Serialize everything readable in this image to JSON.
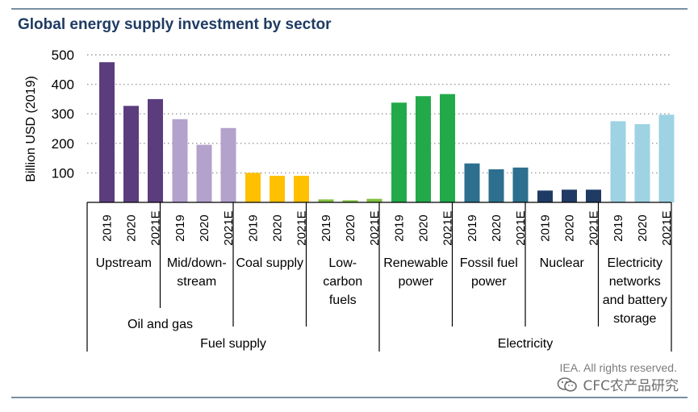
{
  "title": "Global energy supply investment by sector",
  "credit": "IEA. All rights reserved.",
  "watermark_text": "CFC农产品研究",
  "watermark_logo": "wechat-icon",
  "chart_data": {
    "type": "bar",
    "title": "Global energy supply investment by sector",
    "ylabel": "Billion USD (2019)",
    "xlabel": "",
    "ylim": [
      0,
      500
    ],
    "yticks": [
      100,
      200,
      300,
      400,
      500
    ],
    "grid": "horizontal-dotted",
    "groups": [
      {
        "label": "Upstream",
        "color": "#5b3d7e",
        "categories": [
          "2019",
          "2020",
          "2021E"
        ],
        "values": [
          475,
          327,
          350
        ]
      },
      {
        "label": "Mid/down-\nstream",
        "color": "#b3a2cc",
        "categories": [
          "2019",
          "2020",
          "2021E"
        ],
        "values": [
          282,
          195,
          252
        ]
      },
      {
        "label": "Coal supply",
        "color": "#ffc000",
        "categories": [
          "2019",
          "2020",
          "2021E"
        ],
        "values": [
          100,
          90,
          90
        ]
      },
      {
        "label": "Low-\ncarbon\nfuels",
        "color": "#7fbf3f",
        "categories": [
          "2019",
          "2020",
          "2021E"
        ],
        "values": [
          10,
          7,
          12
        ]
      },
      {
        "label": "Renewable\npower",
        "color": "#22aa4a",
        "categories": [
          "2019",
          "2020",
          "2021E"
        ],
        "values": [
          338,
          360,
          367
        ]
      },
      {
        "label": "Fossil fuel\npower",
        "color": "#2d6f8e",
        "categories": [
          "2019",
          "2020",
          "2021E"
        ],
        "values": [
          132,
          112,
          118
        ]
      },
      {
        "label": "Nuclear",
        "color": "#1f3b63",
        "categories": [
          "2019",
          "2020",
          "2021E"
        ],
        "values": [
          40,
          43,
          43
        ]
      },
      {
        "label": "Electricity\nnetworks\nand battery\nstorage",
        "color": "#9dd3e3",
        "categories": [
          "2019",
          "2020",
          "2021E"
        ],
        "values": [
          275,
          265,
          297
        ]
      }
    ],
    "supergroups": [
      {
        "label": "Oil and gas",
        "from": 0,
        "to": 1
      },
      {
        "label": "Fuel supply",
        "from": 0,
        "to": 3
      },
      {
        "label": "Electricity",
        "from": 4,
        "to": 7
      }
    ]
  }
}
